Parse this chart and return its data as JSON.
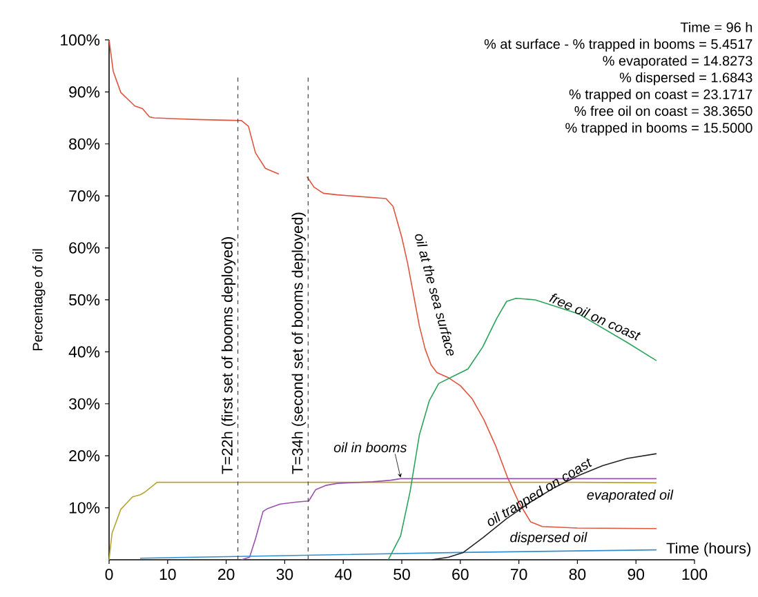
{
  "chart_data": {
    "type": "line",
    "xlabel": "Time (hours)",
    "ylabel": "Percentage of oil",
    "xlim": [
      0,
      100
    ],
    "ylim": [
      0,
      100
    ],
    "xticks": [
      0,
      10,
      20,
      30,
      40,
      50,
      60,
      70,
      80,
      90,
      100
    ],
    "yticks": [
      {
        "value": 10,
        "label": "10%"
      },
      {
        "value": 20,
        "label": "20%"
      },
      {
        "value": 30,
        "label": "30%"
      },
      {
        "value": 40,
        "label": "40%"
      },
      {
        "value": 50,
        "label": "50%"
      },
      {
        "value": 60,
        "label": "60%"
      },
      {
        "value": 70,
        "label": "70%"
      },
      {
        "value": 80,
        "label": "80%"
      },
      {
        "value": 90,
        "label": "90%"
      },
      {
        "value": 100,
        "label": "100%"
      }
    ],
    "series": [
      {
        "color": "#e0533d",
        "x": [
          0,
          0.7,
          2,
          4.4,
          5.7,
          6.9,
          7.7,
          15,
          22.6,
          23.8,
          25,
          26.7,
          29,
          31.5,
          33.8,
          35,
          36.6,
          39,
          47.3,
          48.5,
          50,
          51,
          52,
          53,
          54,
          55,
          56,
          57,
          58,
          60,
          62,
          64,
          66,
          68,
          70,
          72,
          74,
          80,
          93.5
        ],
        "values": [
          100,
          94,
          89.9,
          87.3,
          86.8,
          85.2,
          85,
          84.7,
          84.5,
          83.4,
          78.3,
          75.3,
          74.2,
          null,
          73.7,
          71.7,
          70.5,
          70.2,
          69.5,
          68,
          62,
          57,
          51,
          45,
          40.5,
          37.5,
          36,
          35.5,
          35,
          33.5,
          31,
          27,
          22,
          16,
          11,
          7.3,
          6.4,
          6.1,
          6
        ]
      },
      {
        "color": "#b5a330",
        "x": [
          0,
          0.5,
          2,
          4,
          5.3,
          6.1,
          8.2,
          20,
          40,
          60,
          80,
          93.5
        ],
        "values": [
          0,
          5.1,
          9.7,
          12.1,
          12.5,
          13,
          14.9,
          14.9,
          14.9,
          14.9,
          14.9,
          14.8
        ]
      },
      {
        "color": "#9b4fb0",
        "x": [
          22.6,
          24,
          25,
          26.3,
          27,
          29.2,
          32,
          34.1,
          35.3,
          37,
          39,
          45,
          48.1,
          49.8,
          60,
          80,
          93.5
        ],
        "values": [
          0,
          0.5,
          4,
          9.3,
          9.8,
          10.7,
          11.1,
          11.3,
          13.5,
          14.3,
          14.7,
          15,
          15.3,
          15.6,
          15.6,
          15.6,
          15.6
        ]
      },
      {
        "color": "#2f8fd0",
        "x": [
          5.3,
          20,
          40,
          60,
          80,
          93.5
        ],
        "values": [
          0.3,
          0.6,
          1.0,
          1.4,
          1.7,
          1.9
        ]
      },
      {
        "color": "#2aa35a",
        "x": [
          47.7,
          49.8,
          51.4,
          53,
          54.7,
          56.3,
          58.8,
          61.3,
          63.8,
          66.2,
          67.9,
          69.5,
          72.8,
          80.2,
          88.5,
          93.5
        ],
        "values": [
          0,
          4.6,
          13,
          24,
          30.6,
          33.9,
          35.3,
          36.7,
          40.9,
          46.4,
          49.7,
          50.3,
          50,
          47.3,
          41.8,
          38.3
        ]
      },
      {
        "color": "#222222",
        "x": [
          55.1,
          58,
          60.5,
          63.8,
          67.9,
          72,
          76.1,
          80.2,
          84.3,
          88.5,
          93.5
        ],
        "values": [
          0,
          0.5,
          1.4,
          4.2,
          7.9,
          11.1,
          13.9,
          16.2,
          18.1,
          19.5,
          20.4
        ]
      }
    ],
    "ref_lines": [
      {
        "axis": "x",
        "value": 22,
        "label": "T=22h (first set of booms deployed)",
        "line_style": "dashed"
      },
      {
        "axis": "x",
        "value": 34,
        "label": "T=34h (second set of booms deployed)",
        "line_style": "dashed"
      }
    ],
    "annotations": [
      "Time = 96 h",
      "% at surface - % trapped in booms = 5.4517",
      "% evaporated = 14.8273",
      "% dispersed = 1.6843",
      "% trapped on coast = 23.1717",
      "% free oil on coast = 38.3650",
      "% trapped in booms = 15.5000",
      {
        "text": "oil at the sea surface",
        "x": 52,
        "y": 51
      },
      {
        "text": "free oil on coast",
        "x": 83,
        "y": 46.8
      },
      {
        "text": "oil in booms",
        "x": 49.8,
        "y": 15.8
      },
      {
        "text": "oil trapped on coast",
        "x": 73.5,
        "y": 12.8
      },
      {
        "text": "evaporated oil",
        "x": 80,
        "y": 14.9
      },
      {
        "text": "dispersed oil",
        "x": 80,
        "y": 1.7
      }
    ]
  }
}
